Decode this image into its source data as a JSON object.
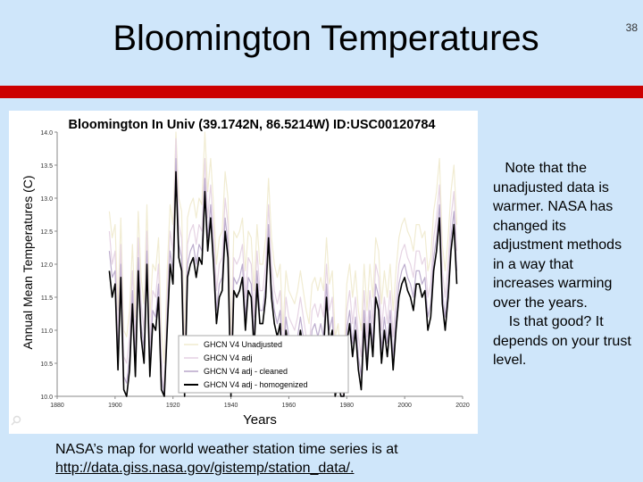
{
  "slide": {
    "title": "Bloomington Temperatures",
    "page_number": "38",
    "side_note": {
      "p1": "Note that the unadjusted data is warmer. NASA has changed its adjustment methods in a way that  increases warming over the years.",
      "p2": "Is that good? It depends on your trust level."
    },
    "footer": {
      "text": "NASA’s map for world weather station time series is at",
      "link": "http://data.giss.nasa.gov/gistemp/station_data/."
    }
  },
  "chart_data": {
    "type": "line",
    "title": "Bloomington In Univ (39.1742N, 86.5214W) ID:USC00120784",
    "xlabel": "Years",
    "ylabel": "Annual Mean Temperatures (C)",
    "xlim": [
      1880,
      2020
    ],
    "ylim": [
      10.0,
      14.0
    ],
    "x_ticks": [
      1880,
      1900,
      1920,
      1940,
      1960,
      1980,
      2000,
      2020
    ],
    "y_ticks": [
      10.0,
      10.5,
      11.0,
      11.5,
      12.0,
      12.5,
      13.0,
      13.5,
      14.0
    ],
    "legend_position": "bottom-center",
    "colors": {
      "unadjusted": "#f1ecd2",
      "adj": "#e6d4e4",
      "adj_cleaned": "#bcaccd",
      "homogenized": "#000000"
    },
    "x": [
      1898,
      1899,
      1900,
      1901,
      1902,
      1903,
      1904,
      1905,
      1906,
      1907,
      1908,
      1909,
      1910,
      1911,
      1912,
      1913,
      1914,
      1915,
      1916,
      1917,
      1918,
      1919,
      1920,
      1921,
      1922,
      1923,
      1924,
      1925,
      1926,
      1927,
      1928,
      1929,
      1930,
      1931,
      1932,
      1933,
      1934,
      1935,
      1936,
      1937,
      1938,
      1939,
      1940,
      1941,
      1942,
      1943,
      1944,
      1945,
      1946,
      1947,
      1948,
      1949,
      1950,
      1951,
      1952,
      1953,
      1954,
      1955,
      1956,
      1957,
      1958,
      1959,
      1960,
      1961,
      1962,
      1963,
      1964,
      1965,
      1966,
      1967,
      1968,
      1969,
      1970,
      1971,
      1972,
      1973,
      1974,
      1975,
      1976,
      1977,
      1978,
      1979,
      1980,
      1981,
      1982,
      1983,
      1984,
      1985,
      1986,
      1987,
      1988,
      1989,
      1990,
      1991,
      1992,
      1993,
      1994,
      1995,
      1996,
      1997,
      1998,
      1999,
      2000,
      2001,
      2002,
      2003,
      2004,
      2005,
      2006,
      2007,
      2008,
      2009,
      2010,
      2011,
      2012,
      2013,
      2014,
      2015,
      2016,
      2017,
      2018
    ],
    "series": [
      {
        "name": "GHCN V4 Unadjusted",
        "values": [
          12.8,
          12.4,
          12.6,
          11.3,
          12.7,
          11.0,
          10.9,
          11.3,
          12.3,
          11.2,
          12.8,
          11.8,
          11.4,
          12.9,
          11.2,
          12.0,
          11.9,
          12.4,
          11.0,
          10.5,
          11.9,
          12.9,
          12.6,
          14.3,
          13.0,
          12.8,
          10.8,
          12.7,
          12.9,
          13.0,
          12.7,
          13.0,
          12.9,
          14.0,
          13.1,
          13.6,
          12.9,
          12.0,
          12.4,
          12.5,
          13.4,
          13.0,
          10.8,
          12.5,
          12.4,
          12.5,
          12.7,
          11.9,
          12.5,
          12.4,
          11.6,
          12.6,
          12.0,
          12.0,
          12.4,
          13.3,
          12.4,
          12.0,
          11.8,
          12.0,
          11.0,
          11.9,
          11.6,
          11.5,
          11.4,
          11.6,
          11.9,
          11.6,
          11.3,
          11.1,
          11.7,
          11.8,
          11.6,
          11.8,
          11.6,
          12.4,
          11.7,
          11.9,
          10.9,
          11.1,
          10.5,
          10.4,
          11.7,
          12.0,
          11.5,
          11.9,
          11.3,
          11.0,
          12.0,
          11.3,
          12.0,
          11.5,
          12.4,
          12.2,
          11.4,
          11.9,
          11.5,
          12.0,
          11.3,
          11.9,
          12.4,
          12.6,
          12.7,
          12.5,
          12.4,
          12.2,
          12.6,
          12.6,
          12.4,
          12.5,
          11.9,
          12.1,
          12.8,
          13.1,
          13.6,
          12.3,
          11.9,
          12.4,
          13.1,
          13.5,
          12.6
        ]
      },
      {
        "name": "GHCN V4 adj",
        "values": [
          12.5,
          12.0,
          12.2,
          10.9,
          12.3,
          10.6,
          10.5,
          10.9,
          11.9,
          10.8,
          12.4,
          11.4,
          11.0,
          12.5,
          10.8,
          11.6,
          11.5,
          12.0,
          10.6,
          10.1,
          11.5,
          12.5,
          12.2,
          13.9,
          12.6,
          12.4,
          10.4,
          12.3,
          12.5,
          12.6,
          12.3,
          12.6,
          12.5,
          13.6,
          12.7,
          13.2,
          12.5,
          11.6,
          12.0,
          12.1,
          13.0,
          12.6,
          10.4,
          12.1,
          12.0,
          12.1,
          12.3,
          11.5,
          12.1,
          12.0,
          11.2,
          12.2,
          11.6,
          11.6,
          12.0,
          12.9,
          12.0,
          11.6,
          11.4,
          11.6,
          10.6,
          11.5,
          11.2,
          11.1,
          11.0,
          11.2,
          11.5,
          11.2,
          10.9,
          10.7,
          11.3,
          11.4,
          11.2,
          11.4,
          11.2,
          12.0,
          11.3,
          11.5,
          10.5,
          10.7,
          10.1,
          10.0,
          11.3,
          11.6,
          11.1,
          11.5,
          10.9,
          10.6,
          11.6,
          10.9,
          11.6,
          11.1,
          12.0,
          11.8,
          11.0,
          11.5,
          11.1,
          11.6,
          10.9,
          11.5,
          12.0,
          12.2,
          12.3,
          12.1,
          12.0,
          11.8,
          12.2,
          12.2,
          12.0,
          12.1,
          11.5,
          11.7,
          12.4,
          12.7,
          13.2,
          11.9,
          11.5,
          12.0,
          12.7,
          13.1,
          12.2
        ]
      },
      {
        "name": "GHCN V4 adj - cleaned",
        "values": [
          12.2,
          11.8,
          11.9,
          10.6,
          12.0,
          10.3,
          10.2,
          10.6,
          11.6,
          10.5,
          12.1,
          11.1,
          10.7,
          12.2,
          10.5,
          11.3,
          11.2,
          11.7,
          10.3,
          9.8,
          11.2,
          12.2,
          11.9,
          13.6,
          12.3,
          12.1,
          10.1,
          12.0,
          12.2,
          12.3,
          12.0,
          12.3,
          12.2,
          13.3,
          12.4,
          12.9,
          12.2,
          11.3,
          11.7,
          11.8,
          12.7,
          12.3,
          10.1,
          11.8,
          11.7,
          11.8,
          12.0,
          11.2,
          11.8,
          11.7,
          10.9,
          11.9,
          11.3,
          11.3,
          11.7,
          12.6,
          11.7,
          11.3,
          11.1,
          11.3,
          10.3,
          11.2,
          10.9,
          10.8,
          10.7,
          10.9,
          11.2,
          10.9,
          10.6,
          10.4,
          11.0,
          11.1,
          10.9,
          11.1,
          10.9,
          11.7,
          11.0,
          11.2,
          10.2,
          10.4,
          9.8,
          9.7,
          11.0,
          11.3,
          10.8,
          11.2,
          10.6,
          10.3,
          11.3,
          10.6,
          11.3,
          10.8,
          11.7,
          11.5,
          10.7,
          11.2,
          10.8,
          11.3,
          10.6,
          11.2,
          11.7,
          11.9,
          12.0,
          11.8,
          11.7,
          11.5,
          11.9,
          11.9,
          11.7,
          11.8,
          11.2,
          11.4,
          12.1,
          12.4,
          12.9,
          11.6,
          11.2,
          11.7,
          12.4,
          12.8,
          11.9
        ]
      },
      {
        "name": "GHCN V4 adj - homogenized",
        "values": [
          11.9,
          11.5,
          11.7,
          10.4,
          11.8,
          10.1,
          10.0,
          10.4,
          11.4,
          10.3,
          11.9,
          10.9,
          10.5,
          12.0,
          10.3,
          11.1,
          11.0,
          11.5,
          10.1,
          9.6,
          11.0,
          12.0,
          11.7,
          13.4,
          12.1,
          11.9,
          9.9,
          11.8,
          12.0,
          12.1,
          11.8,
          12.1,
          12.0,
          13.1,
          12.2,
          12.7,
          12.0,
          11.1,
          11.5,
          11.6,
          12.5,
          12.1,
          9.9,
          11.6,
          11.5,
          11.6,
          11.8,
          11.0,
          11.6,
          11.5,
          10.7,
          11.7,
          11.1,
          11.1,
          11.5,
          12.4,
          11.5,
          11.1,
          10.9,
          11.1,
          10.1,
          11.0,
          10.7,
          10.6,
          10.5,
          10.7,
          11.0,
          10.7,
          10.4,
          10.2,
          10.8,
          10.9,
          10.7,
          10.9,
          10.7,
          11.5,
          10.8,
          11.0,
          10.0,
          10.2,
          9.6,
          9.5,
          10.8,
          11.1,
          10.6,
          11.0,
          10.4,
          10.1,
          11.1,
          10.4,
          11.1,
          10.6,
          11.5,
          11.3,
          10.5,
          11.0,
          10.6,
          11.1,
          10.4,
          11.0,
          11.5,
          11.7,
          11.8,
          11.6,
          11.5,
          11.3,
          11.7,
          11.7,
          11.5,
          11.6,
          11.0,
          11.2,
          11.9,
          12.2,
          12.7,
          11.4,
          11.0,
          11.5,
          12.2,
          12.6,
          11.7
        ]
      }
    ]
  }
}
